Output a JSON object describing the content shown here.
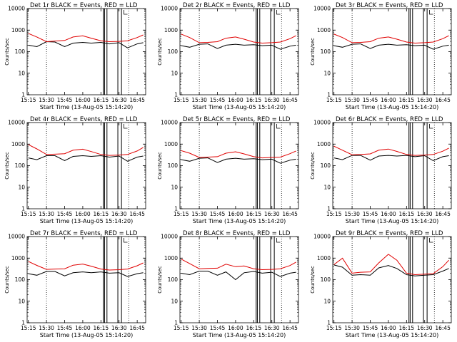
{
  "figure": {
    "colors": {
      "events": "#000000",
      "lld": "#e00000",
      "axes": "#000000",
      "background": "#ffffff"
    }
  },
  "chart_data": [
    {
      "type": "line",
      "title": "Det 1r BLACK = Events, RED = LLD",
      "xlabel": "Start Time (13-Aug-05 15:14:20)",
      "ylabel": "Counts/sec",
      "y_scale": "log",
      "ylim": [
        1,
        10000
      ],
      "x_ticks": [
        "15:15",
        "15:30",
        "15:45",
        "16:00",
        "16:15",
        "16:30",
        "16:45"
      ],
      "y_ticks": [
        "1",
        "10",
        "100",
        "1000",
        "10000"
      ],
      "x": [
        "15:15",
        "15:22",
        "15:30",
        "15:37",
        "15:45",
        "15:52",
        "16:00",
        "16:07",
        "16:15",
        "16:22",
        "16:30",
        "16:37",
        "16:45",
        "16:50"
      ],
      "series": [
        {
          "name": "Events",
          "values": [
            200,
            170,
            290,
            280,
            170,
            250,
            270,
            250,
            270,
            230,
            260,
            150,
            230,
            260
          ]
        },
        {
          "name": "LLD",
          "values": [
            700,
            480,
            290,
            310,
            330,
            480,
            540,
            420,
            320,
            290,
            300,
            320,
            450,
            600
          ]
        }
      ]
    },
    {
      "type": "line",
      "title": "Det 2r BLACK = Events, RED = LLD",
      "xlabel": "Start Time (13-Aug-05 15:14:20)",
      "ylabel": "Counts/sec",
      "y_scale": "log",
      "ylim": [
        1,
        10000
      ],
      "x_ticks": [
        "15:15",
        "15:30",
        "15:45",
        "16:00",
        "16:15",
        "16:30",
        "16:45"
      ],
      "y_ticks": [
        "1",
        "10",
        "100",
        "1000",
        "10000"
      ],
      "x": [
        "15:15",
        "15:22",
        "15:30",
        "15:37",
        "15:45",
        "15:52",
        "16:00",
        "16:07",
        "16:15",
        "16:22",
        "16:30",
        "16:37",
        "16:45",
        "16:50"
      ],
      "series": [
        {
          "name": "Events",
          "values": [
            190,
            160,
            220,
            230,
            140,
            200,
            220,
            200,
            210,
            190,
            200,
            130,
            180,
            200
          ]
        },
        {
          "name": "LLD",
          "values": [
            650,
            450,
            260,
            270,
            290,
            420,
            480,
            380,
            280,
            250,
            260,
            280,
            400,
            550
          ]
        }
      ]
    },
    {
      "type": "line",
      "title": "Det 3r BLACK = Events, RED = LLD",
      "xlabel": "Start Time (13-Aug-05 15:14:20)",
      "ylabel": "Counts/sec",
      "y_scale": "log",
      "ylim": [
        1,
        10000
      ],
      "x_ticks": [
        "15:15",
        "15:30",
        "15:45",
        "16:00",
        "16:15",
        "16:30",
        "16:45"
      ],
      "y_ticks": [
        "1",
        "10",
        "100",
        "1000",
        "10000"
      ],
      "x": [
        "15:15",
        "15:22",
        "15:30",
        "15:37",
        "15:45",
        "15:52",
        "16:00",
        "16:07",
        "16:15",
        "16:22",
        "16:30",
        "16:37",
        "16:45",
        "16:50"
      ],
      "series": [
        {
          "name": "Events",
          "values": [
            190,
            160,
            220,
            230,
            140,
            200,
            220,
            200,
            210,
            190,
            200,
            130,
            180,
            200
          ]
        },
        {
          "name": "LLD",
          "values": [
            650,
            450,
            260,
            270,
            290,
            420,
            480,
            380,
            280,
            250,
            260,
            280,
            400,
            550
          ]
        }
      ]
    },
    {
      "type": "line",
      "title": "Det 4r BLACK = Events, RED = LLD",
      "xlabel": "Start Time (13-Aug-05 15:14:20)",
      "ylabel": "Counts/sec",
      "y_scale": "log",
      "ylim": [
        1,
        10000
      ],
      "x_ticks": [
        "15:15",
        "15:30",
        "15:45",
        "16:00",
        "16:15",
        "16:30",
        "16:45"
      ],
      "y_ticks": [
        "1",
        "10",
        "100",
        "1000",
        "10000"
      ],
      "x": [
        "15:15",
        "15:22",
        "15:30",
        "15:37",
        "15:45",
        "15:52",
        "16:00",
        "16:07",
        "16:15",
        "16:22",
        "16:30",
        "16:37",
        "16:45",
        "16:50"
      ],
      "series": [
        {
          "name": "Events",
          "values": [
            230,
            190,
            290,
            290,
            170,
            270,
            290,
            270,
            290,
            250,
            280,
            160,
            250,
            280
          ]
        },
        {
          "name": "LLD",
          "values": [
            950,
            600,
            330,
            340,
            360,
            520,
            580,
            450,
            330,
            300,
            310,
            330,
            480,
            700
          ]
        }
      ]
    },
    {
      "type": "line",
      "title": "Det 5r BLACK = Events, RED = LLD",
      "xlabel": "Start Time (13-Aug-05 15:14:20)",
      "ylabel": "Counts/sec",
      "y_scale": "log",
      "ylim": [
        1,
        10000
      ],
      "x_ticks": [
        "15:15",
        "15:30",
        "15:45",
        "16:00",
        "16:15",
        "16:30",
        "16:45"
      ],
      "y_ticks": [
        "1",
        "10",
        "100",
        "1000",
        "10000"
      ],
      "x": [
        "15:15",
        "15:22",
        "15:30",
        "15:37",
        "15:45",
        "15:52",
        "16:00",
        "16:07",
        "16:15",
        "16:22",
        "16:30",
        "16:37",
        "16:45",
        "16:50"
      ],
      "series": [
        {
          "name": "Events",
          "values": [
            190,
            160,
            220,
            230,
            140,
            200,
            220,
            200,
            210,
            190,
            200,
            130,
            180,
            200
          ]
        },
        {
          "name": "LLD",
          "values": [
            500,
            380,
            240,
            250,
            260,
            380,
            440,
            350,
            260,
            230,
            240,
            250,
            360,
            480
          ]
        }
      ]
    },
    {
      "type": "line",
      "title": "Det 6r BLACK = Events, RED = LLD",
      "xlabel": "Start Time (13-Aug-05 15:14:20)",
      "ylabel": "Counts/sec",
      "y_scale": "log",
      "ylim": [
        1,
        10000
      ],
      "x_ticks": [
        "15:15",
        "15:30",
        "15:45",
        "16:00",
        "16:15",
        "16:30",
        "16:45"
      ],
      "y_ticks": [
        "1",
        "10",
        "100",
        "1000",
        "10000"
      ],
      "x": [
        "15:15",
        "15:22",
        "15:30",
        "15:37",
        "15:45",
        "15:52",
        "16:00",
        "16:07",
        "16:15",
        "16:22",
        "16:30",
        "16:37",
        "16:45",
        "16:50"
      ],
      "series": [
        {
          "name": "Events",
          "values": [
            230,
            190,
            300,
            300,
            180,
            280,
            300,
            280,
            300,
            260,
            290,
            170,
            260,
            290
          ]
        },
        {
          "name": "LLD",
          "values": [
            800,
            520,
            320,
            330,
            350,
            520,
            590,
            460,
            330,
            300,
            310,
            330,
            470,
            650
          ]
        }
      ]
    },
    {
      "type": "line",
      "title": "Det 7r BLACK = Events, RED = LLD",
      "xlabel": "Start Time (13-Aug-05 15:14:20)",
      "ylabel": "Counts/sec",
      "y_scale": "log",
      "ylim": [
        1,
        10000
      ],
      "x_ticks": [
        "15:15",
        "15:30",
        "15:45",
        "16:00",
        "16:15",
        "16:30",
        "16:45"
      ],
      "y_ticks": [
        "1",
        "10",
        "100",
        "1000",
        "10000"
      ],
      "x": [
        "15:15",
        "15:22",
        "15:30",
        "15:37",
        "15:45",
        "15:52",
        "16:00",
        "16:07",
        "16:15",
        "16:22",
        "16:30",
        "16:37",
        "16:45",
        "16:50"
      ],
      "series": [
        {
          "name": "Events",
          "values": [
            190,
            160,
            240,
            240,
            150,
            210,
            230,
            210,
            230,
            200,
            210,
            140,
            190,
            210
          ]
        },
        {
          "name": "LLD",
          "values": [
            700,
            460,
            300,
            310,
            320,
            470,
            530,
            420,
            310,
            280,
            290,
            310,
            440,
            600
          ]
        }
      ]
    },
    {
      "type": "line",
      "title": "Det 8r BLACK = Events, RED = LLD",
      "xlabel": "Start Time (13-Aug-05 15:14:20)",
      "ylabel": "Counts/sec",
      "y_scale": "log",
      "ylim": [
        1,
        10000
      ],
      "x_ticks": [
        "15:15",
        "15:30",
        "15:45",
        "16:00",
        "16:15",
        "16:30",
        "16:45"
      ],
      "y_ticks": [
        "1",
        "10",
        "100",
        "1000",
        "10000"
      ],
      "x": [
        "15:15",
        "15:22",
        "15:30",
        "15:37",
        "15:45",
        "15:52",
        "16:00",
        "16:07",
        "16:15",
        "16:22",
        "16:30",
        "16:37",
        "16:45",
        "16:50"
      ],
      "series": [
        {
          "name": "Events",
          "values": [
            200,
            170,
            250,
            250,
            160,
            230,
            100,
            210,
            240,
            200,
            220,
            140,
            200,
            220
          ]
        },
        {
          "name": "LLD",
          "values": [
            900,
            560,
            320,
            330,
            340,
            520,
            400,
            430,
            320,
            290,
            300,
            320,
            450,
            650
          ]
        }
      ]
    },
    {
      "type": "line",
      "title": "Det 9r BLACK = Events, RED = LLD",
      "xlabel": "Start Time (13-Aug-05 15:14:20)",
      "ylabel": "Counts/sec",
      "y_scale": "log",
      "ylim": [
        1,
        10000
      ],
      "x_ticks": [
        "15:15",
        "15:30",
        "15:45",
        "16:00",
        "16:15",
        "16:30",
        "16:45"
      ],
      "y_ticks": [
        "1",
        "10",
        "100",
        "1000",
        "10000"
      ],
      "x": [
        "15:15",
        "15:22",
        "15:30",
        "15:37",
        "15:45",
        "15:52",
        "16:00",
        "16:07",
        "16:15",
        "16:22",
        "16:30",
        "16:37",
        "16:45",
        "16:50"
      ],
      "series": [
        {
          "name": "Events",
          "values": [
            480,
            380,
            160,
            170,
            160,
            350,
            450,
            330,
            170,
            150,
            160,
            170,
            250,
            330
          ]
        },
        {
          "name": "LLD",
          "values": [
            500,
            1000,
            200,
            220,
            230,
            600,
            1500,
            800,
            200,
            170,
            180,
            190,
            400,
            800
          ]
        }
      ]
    }
  ]
}
